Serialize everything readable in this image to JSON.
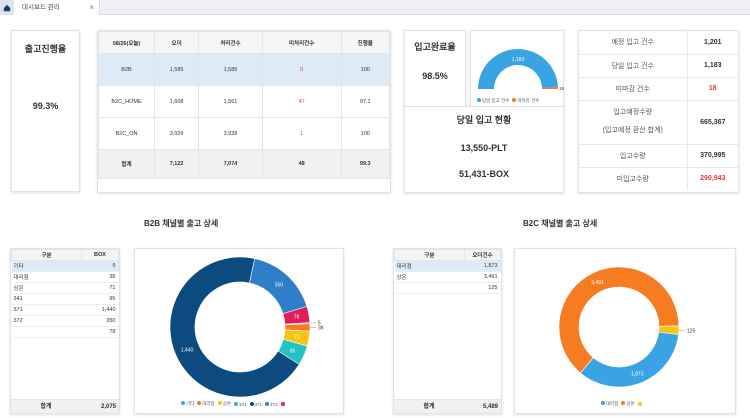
{
  "app": {
    "tab_label": "대시보드 관리",
    "close_glyph": "×"
  },
  "kpi": {
    "outbound_progress_title": "출고진행율",
    "outbound_progress_value": "99.3%",
    "inbound_complete_title": "입고완료율",
    "inbound_complete_value": "98.5%",
    "today_inbound_title": "당일 입고 현황",
    "today_plt": "13,550-PLT",
    "today_box": "51,431-BOX"
  },
  "outbound_table": {
    "headers": [
      "08/26(오늘)",
      "오더",
      "처리건수",
      "미처리건수",
      "진행율"
    ],
    "rows": [
      {
        "channel": "B2B",
        "order": "1,585",
        "processed": "1,585",
        "unprocessed": "0",
        "progress": "100"
      },
      {
        "channel": "B2C_HOME",
        "order": "1,608",
        "processed": "1,561",
        "unprocessed": "47",
        "progress": "97.1"
      },
      {
        "channel": "B2C_ON",
        "order": "3,929",
        "processed": "3,928",
        "unprocessed": "1",
        "progress": "100"
      }
    ],
    "total": {
      "channel": "합계",
      "order": "7,122",
      "processed": "7,074",
      "unprocessed": "48",
      "progress": "99.3"
    }
  },
  "gauge": {
    "label_value": "1,183",
    "right_value": "18",
    "legend": [
      "당일 입고 건수",
      "미마감 건수"
    ],
    "colors": [
      "#3aa3e3",
      "#f57c20"
    ],
    "done": 1183,
    "remaining": 18
  },
  "inbound_stats": {
    "rows": [
      {
        "label": "예정 입고 건수",
        "value": "1,201"
      },
      {
        "label": "당일 입고 건수",
        "value": "1,183"
      },
      {
        "label": "미마감 건수",
        "value": "18"
      },
      {
        "label": "입고예정수량",
        "sub": "(입고예정 환산 합계)",
        "value": "665,367"
      },
      {
        "label": "입고수량",
        "value": "370,995"
      },
      {
        "label": "미입고수량",
        "value": "290,943"
      }
    ]
  },
  "b2b": {
    "title": "B2B 채널별 출고 상세",
    "headers": [
      "구분",
      "BOX"
    ],
    "rows": [
      {
        "name": "기타",
        "value": "5"
      },
      {
        "name": "대리점",
        "value": "36"
      },
      {
        "name": "상온",
        "value": "71"
      },
      {
        "name": "341",
        "value": "95"
      },
      {
        "name": "371",
        "value": "1,440"
      },
      {
        "name": "372",
        "value": "350"
      },
      {
        "name": "",
        "value": "78"
      }
    ],
    "total_label": "합계",
    "total_value": "2,075"
  },
  "b2c": {
    "title": "B2C 채널별 출고 상세",
    "headers": [
      "구분",
      "오더건수"
    ],
    "rows": [
      {
        "name": "대리점",
        "value": "1,873"
      },
      {
        "name": "상온",
        "value": "3,491"
      },
      {
        "name": "",
        "value": "125"
      }
    ],
    "total_label": "합계",
    "total_value": "5,489"
  },
  "chart_data": [
    {
      "type": "pie",
      "donut": true,
      "title": "B2B 채널별 출고 상세",
      "slices": [
        {
          "name": "기타",
          "value": 5,
          "color": "#3aa3e3"
        },
        {
          "name": "대리점",
          "value": 36,
          "color": "#f57c20"
        },
        {
          "name": "상온",
          "value": 71,
          "color": "#f5c518"
        },
        {
          "name": "341",
          "value": 95,
          "color": "#22c3c3"
        },
        {
          "name": "371",
          "value": 1440,
          "color": "#0d4a80"
        },
        {
          "name": "372",
          "value": 350,
          "color": "#2f7fc8"
        },
        {
          "name": "",
          "value": 78,
          "color": "#e01e5a"
        }
      ],
      "labels_shown": [
        "1,440",
        "350",
        "78",
        "5",
        "36",
        "71",
        "95"
      ],
      "legend_position": "bottom"
    },
    {
      "type": "pie",
      "donut": true,
      "title": "B2C 채널별 출고 상세",
      "slices": [
        {
          "name": "대리점",
          "value": 1873,
          "color": "#3aa3e3"
        },
        {
          "name": "상온",
          "value": 3491,
          "color": "#f57c20"
        },
        {
          "name": "",
          "value": 125,
          "color": "#f5c518"
        }
      ],
      "labels_shown": [
        "1,873",
        "3,491",
        "125"
      ],
      "legend_position": "bottom"
    }
  ]
}
